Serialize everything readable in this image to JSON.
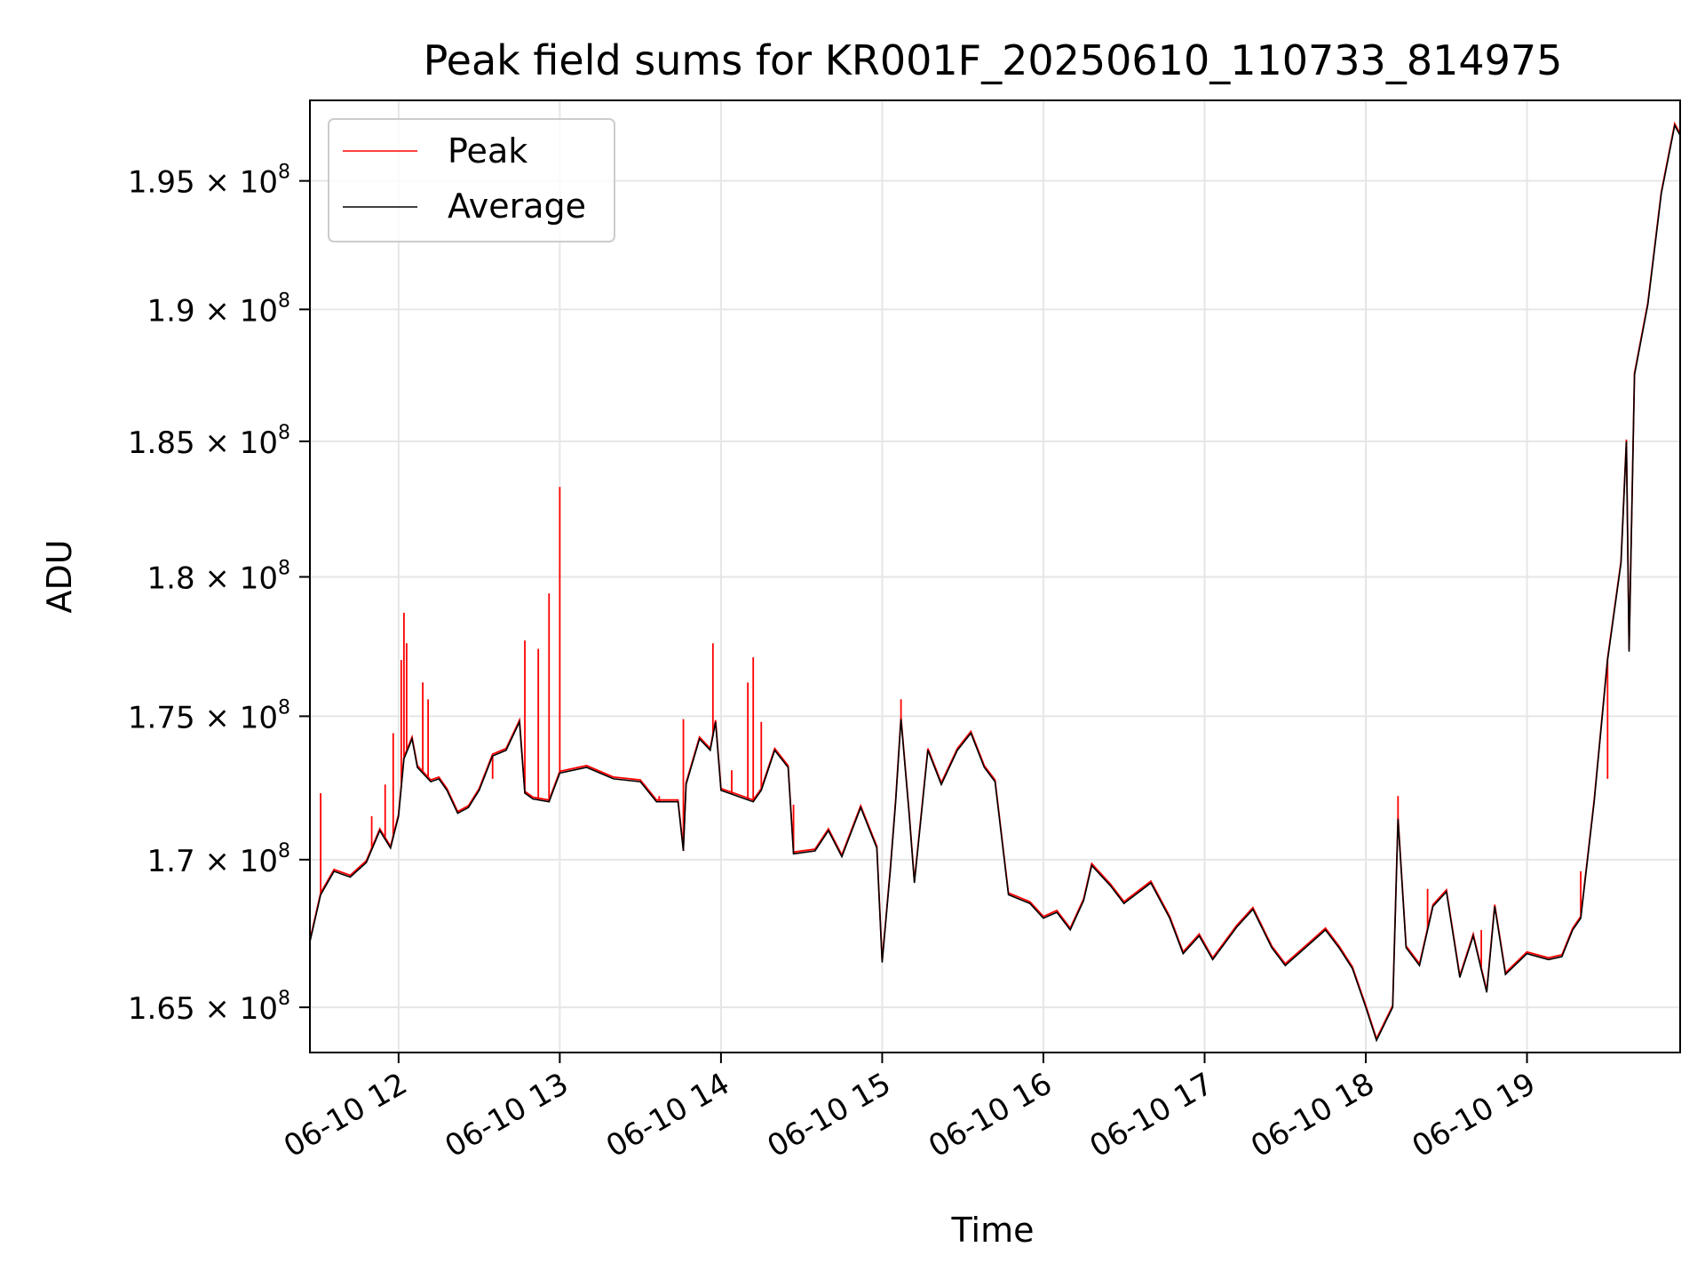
{
  "chart_data": {
    "type": "line",
    "title": "Peak field sums for KR001F_20250610_110733_814975",
    "xlabel": "Time",
    "ylabel": "ADU",
    "x_axis": {
      "kind": "datetime",
      "date": "2025-06-10",
      "range": [
        "11:27",
        "19:57"
      ],
      "ticks": [
        {
          "value": "12:00",
          "label": "06-10 12"
        },
        {
          "value": "13:00",
          "label": "06-10 13"
        },
        {
          "value": "14:00",
          "label": "06-10 14"
        },
        {
          "value": "15:00",
          "label": "06-10 15"
        },
        {
          "value": "16:00",
          "label": "06-10 16"
        },
        {
          "value": "17:00",
          "label": "06-10 17"
        },
        {
          "value": "18:00",
          "label": "06-10 18"
        },
        {
          "value": "19:00",
          "label": "06-10 19"
        }
      ]
    },
    "y_axis": {
      "scale": "log",
      "range": [
        163500000,
        198200000
      ],
      "ticks": [
        {
          "value": 165000000,
          "mantissa": "1.65",
          "exponent": "8"
        },
        {
          "value": 170000000,
          "mantissa": "1.7",
          "exponent": "8"
        },
        {
          "value": 175000000,
          "mantissa": "1.75",
          "exponent": "8"
        },
        {
          "value": 180000000,
          "mantissa": "1.8",
          "exponent": "8"
        },
        {
          "value": 185000000,
          "mantissa": "1.85",
          "exponent": "8"
        },
        {
          "value": 190000000,
          "mantissa": "1.9",
          "exponent": "8"
        },
        {
          "value": 195000000,
          "mantissa": "1.95",
          "exponent": "8"
        }
      ]
    },
    "grid": true,
    "legend": "upper-left",
    "colors": {
      "peak": "#ff0000",
      "average": "#000000",
      "grid": "#e6e6e6"
    },
    "series": [
      {
        "name": "Average",
        "color": "#000000",
        "points": [
          [
            "11:27",
            167.2
          ],
          [
            "11:31",
            168.8
          ],
          [
            "11:36",
            169.6
          ],
          [
            "11:42",
            169.4
          ],
          [
            "11:48",
            169.9
          ],
          [
            "11:53",
            171.0
          ],
          [
            "11:57",
            170.4
          ],
          [
            "12:00",
            171.5
          ],
          [
            "12:02",
            173.5
          ],
          [
            "12:05",
            174.2
          ],
          [
            "12:07",
            173.2
          ],
          [
            "12:12",
            172.7
          ],
          [
            "12:15",
            172.8
          ],
          [
            "12:18",
            172.4
          ],
          [
            "12:22",
            171.6
          ],
          [
            "12:26",
            171.8
          ],
          [
            "12:30",
            172.4
          ],
          [
            "12:35",
            173.6
          ],
          [
            "12:40",
            173.8
          ],
          [
            "12:45",
            174.8
          ],
          [
            "12:47",
            172.3
          ],
          [
            "12:50",
            172.1
          ],
          [
            "12:56",
            172.0
          ],
          [
            "13:00",
            173.0
          ],
          [
            "13:10",
            173.2
          ],
          [
            "13:20",
            172.8
          ],
          [
            "13:30",
            172.7
          ],
          [
            "13:36",
            172.0
          ],
          [
            "13:44",
            172.0
          ],
          [
            "13:46",
            170.3
          ],
          [
            "13:47",
            172.6
          ],
          [
            "13:52",
            174.2
          ],
          [
            "13:56",
            173.8
          ],
          [
            "13:58",
            174.8
          ],
          [
            "14:00",
            172.4
          ],
          [
            "14:06",
            172.2
          ],
          [
            "14:12",
            172.0
          ],
          [
            "14:15",
            172.4
          ],
          [
            "14:20",
            173.8
          ],
          [
            "14:25",
            173.2
          ],
          [
            "14:27",
            170.2
          ],
          [
            "14:35",
            170.3
          ],
          [
            "14:40",
            171.0
          ],
          [
            "14:45",
            170.1
          ],
          [
            "14:52",
            171.8
          ],
          [
            "14:58",
            170.4
          ],
          [
            "15:00",
            166.5
          ],
          [
            "15:03",
            169.6
          ],
          [
            "15:05",
            172.0
          ],
          [
            "15:07",
            174.9
          ],
          [
            "15:10",
            171.6
          ],
          [
            "15:12",
            169.2
          ],
          [
            "15:17",
            173.8
          ],
          [
            "15:22",
            172.6
          ],
          [
            "15:28",
            173.8
          ],
          [
            "15:33",
            174.4
          ],
          [
            "15:38",
            173.2
          ],
          [
            "15:42",
            172.7
          ],
          [
            "15:47",
            168.8
          ],
          [
            "15:55",
            168.5
          ],
          [
            "16:00",
            168.0
          ],
          [
            "16:05",
            168.2
          ],
          [
            "16:10",
            167.6
          ],
          [
            "16:15",
            168.6
          ],
          [
            "16:18",
            169.8
          ],
          [
            "16:25",
            169.1
          ],
          [
            "16:30",
            168.5
          ],
          [
            "16:40",
            169.2
          ],
          [
            "16:47",
            168.0
          ],
          [
            "16:52",
            166.8
          ],
          [
            "16:58",
            167.4
          ],
          [
            "17:03",
            166.6
          ],
          [
            "17:12",
            167.7
          ],
          [
            "17:18",
            168.3
          ],
          [
            "17:25",
            167.0
          ],
          [
            "17:30",
            166.4
          ],
          [
            "17:40",
            167.2
          ],
          [
            "17:45",
            167.6
          ],
          [
            "17:50",
            167.0
          ],
          [
            "17:55",
            166.3
          ],
          [
            "18:00",
            165.0
          ],
          [
            "18:04",
            163.9
          ],
          [
            "18:10",
            165.0
          ],
          [
            "18:12",
            171.4
          ],
          [
            "18:15",
            167.0
          ],
          [
            "18:20",
            166.4
          ],
          [
            "18:25",
            168.4
          ],
          [
            "18:30",
            168.9
          ],
          [
            "18:35",
            166.0
          ],
          [
            "18:40",
            167.4
          ],
          [
            "18:45",
            165.5
          ],
          [
            "18:48",
            168.4
          ],
          [
            "18:52",
            166.1
          ],
          [
            "19:00",
            166.8
          ],
          [
            "19:08",
            166.6
          ],
          [
            "19:13",
            166.7
          ],
          [
            "19:17",
            167.6
          ],
          [
            "19:20",
            168.0
          ],
          [
            "19:25",
            172.0
          ],
          [
            "19:30",
            177.0
          ],
          [
            "19:35",
            180.5
          ],
          [
            "19:37",
            185.0
          ],
          [
            "19:38",
            177.3
          ],
          [
            "19:40",
            187.5
          ],
          [
            "19:45",
            190.2
          ],
          [
            "19:50",
            194.5
          ],
          [
            "19:55",
            197.2
          ],
          [
            "19:57",
            196.8
          ]
        ]
      },
      {
        "name": "Peak",
        "color": "#ff0000",
        "spikes": [
          [
            "11:31",
            172.3
          ],
          [
            "11:50",
            171.5
          ],
          [
            "11:55",
            172.6
          ],
          [
            "11:58",
            174.4
          ],
          [
            "12:01",
            177.0
          ],
          [
            "12:02",
            178.7
          ],
          [
            "12:03",
            177.6
          ],
          [
            "12:09",
            176.2
          ],
          [
            "12:11",
            175.6
          ],
          [
            "12:35",
            172.8
          ],
          [
            "12:47",
            177.7
          ],
          [
            "12:52",
            177.4
          ],
          [
            "12:56",
            179.4
          ],
          [
            "13:00",
            183.3
          ],
          [
            "13:37",
            172.2
          ],
          [
            "13:46",
            174.9
          ],
          [
            "13:57",
            177.6
          ],
          [
            "14:04",
            173.1
          ],
          [
            "14:10",
            176.2
          ],
          [
            "14:12",
            177.1
          ],
          [
            "14:15",
            174.8
          ],
          [
            "14:27",
            171.9
          ],
          [
            "15:07",
            175.6
          ],
          [
            "18:12",
            172.2
          ],
          [
            "18:23",
            169.0
          ],
          [
            "18:43",
            167.6
          ],
          [
            "19:20",
            169.6
          ],
          [
            "19:30",
            172.8
          ]
        ]
      }
    ]
  }
}
